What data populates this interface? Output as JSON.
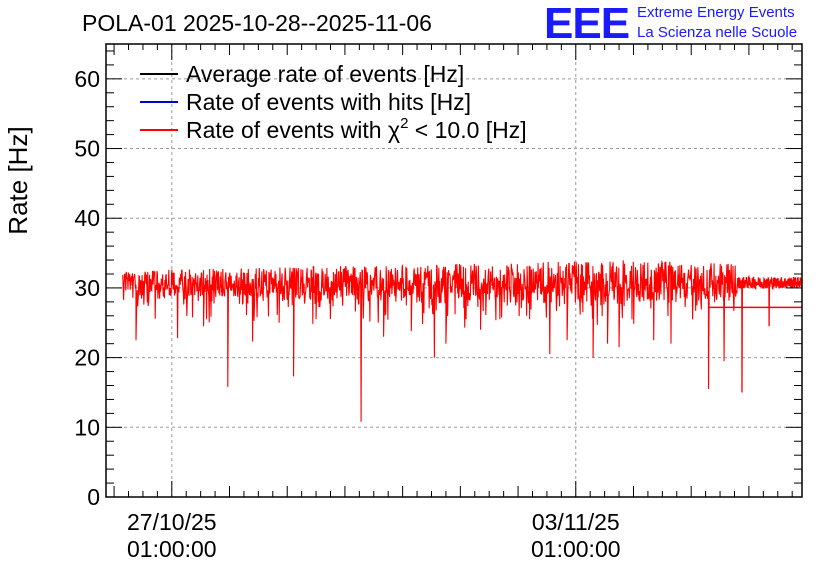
{
  "header": {
    "title": "POLA-01 2025-10-28--2025-11-06",
    "logo_text": "EEE",
    "brand_line1": "Extreme Energy Events",
    "brand_line2": "La Scienza nelle Scuole"
  },
  "colors": {
    "brand": "#1a1aff",
    "average": "#000000",
    "hits": "#0000cc",
    "chi2": "#ff0000",
    "grid": "#9a9a9a"
  },
  "chart_data": {
    "type": "line",
    "title": "POLA-01 2025-10-28--2025-11-06",
    "ylabel": "Rate [Hz]",
    "xlabel": "",
    "ylim": [
      0,
      65
    ],
    "yticks": [
      0,
      10,
      20,
      30,
      40,
      50,
      60
    ],
    "xlim_days": [
      -1.14,
      10.92
    ],
    "xticks": [
      {
        "day": 0,
        "label_line1": "27/10/25",
        "label_line2": "01:00:00"
      },
      {
        "day": 7,
        "label_line1": "03/11/25",
        "label_line2": "01:00:00"
      }
    ],
    "grid": true,
    "legend_position": "top-left",
    "legend": [
      {
        "label": "Average rate of events [Hz]",
        "color": "#000000",
        "chi": false
      },
      {
        "label": "Rate of events with hits [Hz]",
        "color": "#0000cc",
        "chi": false
      },
      {
        "label_pre": "Rate of events with ",
        "label_chi": "χ",
        "label_sup": "2",
        "label_post": " < 10.0 [Hz]",
        "color": "#ff0000",
        "chi": true
      }
    ],
    "series": [
      {
        "name": "Rate of events with chi2 < 10.0 [Hz]",
        "color": "#ff0000",
        "data_start_day": -0.85,
        "data_end_day": 10.92,
        "noise_end_day": 9.8,
        "baseline_min": 29.5,
        "baseline_max": 31.5,
        "upper_envelope": [
          [
            -0.85,
            32.5
          ],
          [
            2.0,
            33.0
          ],
          [
            5.0,
            33.5
          ],
          [
            8.0,
            34.0
          ],
          [
            9.8,
            33.5
          ]
        ],
        "dips": [
          {
            "day": -0.62,
            "value": 22.5
          },
          {
            "day": 0.1,
            "value": 22.8
          },
          {
            "day": 0.55,
            "value": 24.5
          },
          {
            "day": 0.97,
            "value": 15.8
          },
          {
            "day": 1.4,
            "value": 22.3
          },
          {
            "day": 1.86,
            "value": 25.0
          },
          {
            "day": 2.11,
            "value": 17.3
          },
          {
            "day": 2.5,
            "value": 25.5
          },
          {
            "day": 3.28,
            "value": 10.8
          },
          {
            "day": 3.67,
            "value": 23.0
          },
          {
            "day": 4.15,
            "value": 23.8
          },
          {
            "day": 4.55,
            "value": 20.0
          },
          {
            "day": 4.75,
            "value": 22.0
          },
          {
            "day": 5.35,
            "value": 24.0
          },
          {
            "day": 6.2,
            "value": 25.5
          },
          {
            "day": 6.55,
            "value": 20.5
          },
          {
            "day": 6.85,
            "value": 22.5
          },
          {
            "day": 7.3,
            "value": 20.0
          },
          {
            "day": 7.55,
            "value": 22.0
          },
          {
            "day": 7.75,
            "value": 21.5
          },
          {
            "day": 8.35,
            "value": 22.5
          },
          {
            "day": 8.65,
            "value": 22.0
          },
          {
            "day": 9.3,
            "value": 15.5
          },
          {
            "day": 9.57,
            "value": 19.5
          },
          {
            "day": 9.88,
            "value": 15.0
          },
          {
            "day": 10.35,
            "value": 24.5
          }
        ],
        "offset_line_start_day": 9.3,
        "offset_line_value": 27.2
      }
    ]
  }
}
